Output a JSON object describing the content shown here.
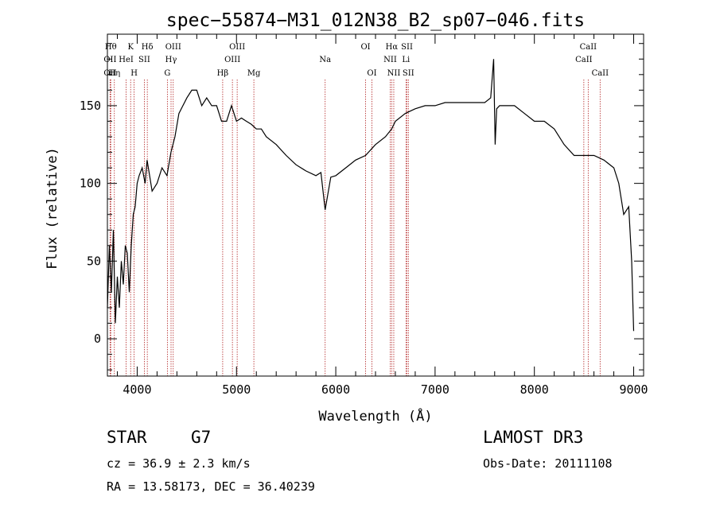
{
  "chart_data": {
    "type": "line",
    "title": "spec−55874−M31_012N38_B2_sp07−046.fits",
    "xlabel": "Wavelength (Å)",
    "ylabel": "Flux (relative)",
    "xlim": [
      3700,
      9100
    ],
    "ylim": [
      -24,
      196
    ],
    "x_ticks": [
      4000,
      5000,
      6000,
      7000,
      8000,
      9000
    ],
    "y_ticks": [
      0,
      50,
      100,
      150
    ],
    "line_color": "#000000",
    "marker_color": "#b22222",
    "series": [
      {
        "x": [
          3700,
          3720,
          3740,
          3760,
          3780,
          3800,
          3820,
          3840,
          3860,
          3880,
          3900,
          3920,
          3940,
          3960,
          3980,
          4000,
          4020,
          4050,
          4080,
          4100,
          4150,
          4200,
          4250,
          4300,
          4340,
          4380,
          4420,
          4460,
          4500,
          4550,
          4600,
          4650,
          4700,
          4750,
          4800,
          4850,
          4900,
          4950,
          5000,
          5050,
          5100,
          5150,
          5200,
          5250,
          5300,
          5400,
          5500,
          5600,
          5700,
          5800,
          5850,
          5893,
          5950,
          6000,
          6100,
          6200,
          6300,
          6400,
          6500,
          6563,
          6600,
          6700,
          6800,
          6900,
          7000,
          7100,
          7200,
          7300,
          7400,
          7500,
          7560,
          7590,
          7605,
          7620,
          7650,
          7700,
          7800,
          7900,
          8000,
          8100,
          8200,
          8300,
          8400,
          8500,
          8600,
          8700,
          8800,
          8850,
          8900,
          8950,
          8980,
          9000
        ],
        "y": [
          20,
          60,
          30,
          70,
          10,
          40,
          20,
          50,
          35,
          60,
          55,
          30,
          60,
          80,
          85,
          100,
          105,
          110,
          100,
          115,
          95,
          100,
          110,
          105,
          120,
          130,
          145,
          150,
          155,
          160,
          160,
          150,
          155,
          150,
          150,
          140,
          140,
          150,
          140,
          142,
          140,
          138,
          135,
          135,
          130,
          125,
          118,
          112,
          108,
          105,
          107,
          83,
          104,
          105,
          110,
          115,
          118,
          125,
          130,
          135,
          140,
          145,
          148,
          150,
          150,
          152,
          152,
          152,
          152,
          152,
          155,
          180,
          125,
          148,
          150,
          150,
          150,
          145,
          140,
          140,
          135,
          125,
          118,
          118,
          118,
          115,
          110,
          100,
          80,
          85,
          50,
          5
        ]
      }
    ],
    "line_markers": [
      {
        "wl": 3734,
        "label": "Hθ",
        "row": 1
      },
      {
        "wl": 3727,
        "label": "OII",
        "row": 2
      },
      {
        "wl": 3727,
        "label": "OII",
        "row": 3
      },
      {
        "wl": 3770,
        "label": "Hη",
        "row": 3
      },
      {
        "wl": 3889,
        "label": "HeI",
        "row": 2
      },
      {
        "wl": 3934,
        "label": "K",
        "row": 1
      },
      {
        "wl": 3969,
        "label": "H",
        "row": 3
      },
      {
        "wl": 4072,
        "label": "SII",
        "row": 2
      },
      {
        "wl": 4102,
        "label": "Hδ",
        "row": 1
      },
      {
        "wl": 4304,
        "label": "G",
        "row": 3
      },
      {
        "wl": 4341,
        "label": "Hγ",
        "row": 2
      },
      {
        "wl": 4363,
        "label": "OIII",
        "row": 1
      },
      {
        "wl": 4861,
        "label": "Hβ",
        "row": 3
      },
      {
        "wl": 4959,
        "label": "OIII",
        "row": 2
      },
      {
        "wl": 5007,
        "label": "OIII",
        "row": 1
      },
      {
        "wl": 5175,
        "label": "Mg",
        "row": 3
      },
      {
        "wl": 5893,
        "label": "Na",
        "row": 2
      },
      {
        "wl": 6300,
        "label": "OI",
        "row": 1
      },
      {
        "wl": 6364,
        "label": "OI",
        "row": 3
      },
      {
        "wl": 6548,
        "label": "NII",
        "row": 2
      },
      {
        "wl": 6563,
        "label": "Hα",
        "row": 1
      },
      {
        "wl": 6584,
        "label": "NII",
        "row": 3
      },
      {
        "wl": 6707,
        "label": "Li",
        "row": 2
      },
      {
        "wl": 6717,
        "label": "SII",
        "row": 1
      },
      {
        "wl": 6731,
        "label": "SII",
        "row": 3
      },
      {
        "wl": 8498,
        "label": "CaII",
        "row": 2
      },
      {
        "wl": 8542,
        "label": "CaII",
        "row": 1
      },
      {
        "wl": 8662,
        "label": "CaII",
        "row": 3
      }
    ]
  },
  "footer": {
    "class_label": "STAR",
    "subclass": "G7",
    "survey": "LAMOST DR3",
    "cz": "cz = 36.9 ± 2.3 km/s",
    "obs_date": "Obs-Date: 20111108",
    "coords": "RA =  13.58173, DEC =  36.40239"
  }
}
